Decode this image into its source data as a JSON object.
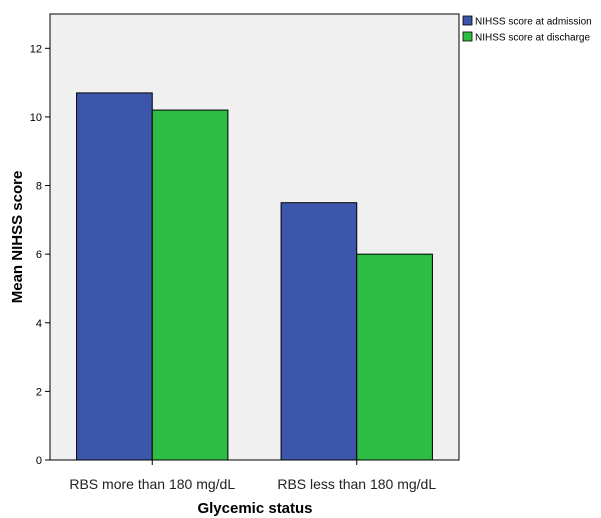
{
  "chart_data": {
    "type": "bar",
    "xlabel": "Glycemic status",
    "ylabel": "Mean NIHSS score",
    "categories": [
      "RBS more than 180 mg/dL",
      "RBS less than 180 mg/dL"
    ],
    "series": [
      {
        "name": "NIHSS score at admission",
        "values": [
          10.7,
          7.5
        ],
        "color": "#3b56ab"
      },
      {
        "name": "NIHSS score at discharge",
        "values": [
          10.2,
          6.0
        ],
        "color": "#2ebd44"
      }
    ],
    "ylim": [
      0,
      13
    ],
    "yticks": [
      0,
      2,
      4,
      6,
      8,
      10,
      12
    ],
    "grid": false,
    "legend_position": "top-right",
    "plot_background": "#f0f0f0"
  }
}
